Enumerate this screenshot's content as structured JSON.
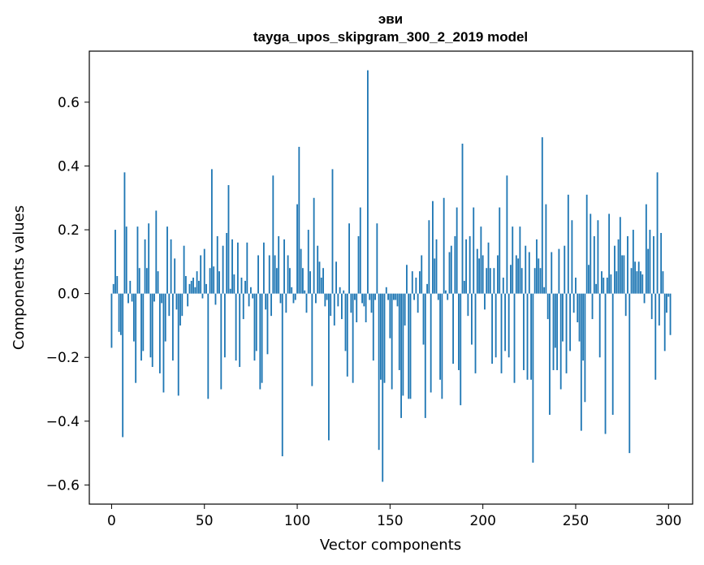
{
  "chart_data": {
    "type": "bar",
    "title": "эви",
    "subtitle": "tayga_upos_skipgram_300_2_2019 model",
    "xlabel": "Vector components",
    "ylabel": "Components values",
    "xlim": [
      -12,
      313
    ],
    "ylim": [
      -0.66,
      0.76
    ],
    "xticks": [
      0,
      50,
      100,
      150,
      200,
      250,
      300
    ],
    "yticks": [
      -0.6,
      -0.4,
      -0.2,
      0.0,
      0.2,
      0.4,
      0.6
    ],
    "ytick_labels": [
      "−0.6",
      "−0.4",
      "−0.2",
      "0.0",
      "0.2",
      "0.4",
      "0.6"
    ],
    "bar_color": "#1f77b4",
    "x_start": 0,
    "values": [
      -0.17,
      0.03,
      0.2,
      0.055,
      -0.12,
      -0.13,
      -0.45,
      0.38,
      0.21,
      -0.03,
      0.04,
      -0.025,
      -0.15,
      -0.28,
      0.21,
      0.08,
      -0.21,
      -0.18,
      0.17,
      0.08,
      0.22,
      -0.2,
      -0.23,
      -0.025,
      0.26,
      0.07,
      -0.25,
      -0.03,
      -0.31,
      -0.15,
      0.21,
      -0.07,
      0.17,
      -0.21,
      0.11,
      -0.05,
      -0.32,
      -0.1,
      -0.07,
      0.15,
      0.055,
      -0.04,
      0.03,
      0.04,
      0.05,
      0.02,
      0.07,
      0.04,
      0.12,
      -0.015,
      0.14,
      0.03,
      -0.33,
      0.08,
      0.39,
      0.085,
      -0.035,
      0.18,
      0.07,
      -0.3,
      0.15,
      -0.2,
      0.19,
      0.34,
      0.015,
      0.17,
      0.06,
      -0.21,
      0.16,
      -0.23,
      0.05,
      -0.08,
      0.04,
      0.16,
      -0.04,
      0.02,
      -0.015,
      -0.21,
      -0.18,
      0.12,
      -0.3,
      -0.28,
      0.16,
      -0.05,
      -0.19,
      0.12,
      -0.07,
      0.37,
      0.12,
      0.08,
      0.18,
      -0.03,
      -0.51,
      0.17,
      -0.06,
      0.12,
      0.08,
      0.02,
      -0.03,
      -0.02,
      0.28,
      0.46,
      0.14,
      0.08,
      0.01,
      -0.06,
      0.2,
      0.07,
      -0.29,
      0.3,
      -0.03,
      0.15,
      0.1,
      0.05,
      0.08,
      -0.04,
      -0.02,
      -0.46,
      -0.07,
      0.39,
      -0.1,
      0.1,
      -0.04,
      0.02,
      -0.08,
      0.01,
      -0.18,
      -0.26,
      0.22,
      -0.06,
      -0.28,
      -0.02,
      -0.09,
      0.18,
      0.27,
      -0.03,
      -0.04,
      -0.09,
      0.7,
      -0.02,
      -0.06,
      -0.21,
      -0.02,
      0.22,
      -0.49,
      -0.27,
      -0.59,
      -0.28,
      0.02,
      -0.02,
      -0.14,
      -0.3,
      -0.02,
      -0.02,
      -0.04,
      -0.24,
      -0.39,
      -0.32,
      -0.1,
      0.09,
      -0.33,
      -0.33,
      0.07,
      -0.02,
      0.05,
      -0.06,
      0.07,
      0.12,
      -0.16,
      -0.39,
      0.03,
      0.23,
      -0.31,
      0.29,
      0.11,
      0.17,
      -0.02,
      -0.27,
      -0.33,
      0.3,
      0.01,
      -0.02,
      0.13,
      0.15,
      -0.22,
      0.18,
      0.27,
      -0.24,
      -0.35,
      0.47,
      0.04,
      0.17,
      -0.07,
      0.18,
      -0.16,
      0.27,
      -0.25,
      0.14,
      0.11,
      0.21,
      0.12,
      -0.05,
      0.08,
      0.16,
      0.08,
      -0.22,
      0.08,
      -0.2,
      0.12,
      0.27,
      -0.25,
      0.05,
      -0.18,
      0.37,
      -0.2,
      0.09,
      0.21,
      -0.28,
      0.12,
      0.11,
      0.21,
      0.08,
      -0.24,
      0.15,
      -0.27,
      0.13,
      -0.27,
      -0.53,
      0.08,
      0.17,
      0.11,
      0.08,
      0.49,
      0.02,
      0.28,
      -0.08,
      -0.38,
      0.13,
      -0.24,
      -0.17,
      -0.24,
      0.14,
      -0.3,
      -0.15,
      0.15,
      -0.25,
      0.31,
      -0.18,
      0.23,
      -0.06,
      0.05,
      -0.09,
      -0.15,
      -0.43,
      -0.21,
      -0.34,
      0.31,
      0.09,
      0.25,
      -0.08,
      0.18,
      0.03,
      0.23,
      -0.2,
      0.07,
      0.05,
      -0.44,
      0.05,
      0.25,
      0.06,
      -0.38,
      0.15,
      0.07,
      0.17,
      0.24,
      0.12,
      0.12,
      -0.07,
      0.18,
      -0.5,
      0.08,
      0.2,
      0.1,
      0.07,
      0.1,
      0.07,
      0.06,
      -0.03,
      0.28,
      0.14,
      0.2,
      -0.08,
      0.18,
      -0.27,
      0.38,
      -0.1,
      0.19,
      0.07,
      -0.18,
      -0.06,
      -0.01,
      -0.13
    ]
  }
}
